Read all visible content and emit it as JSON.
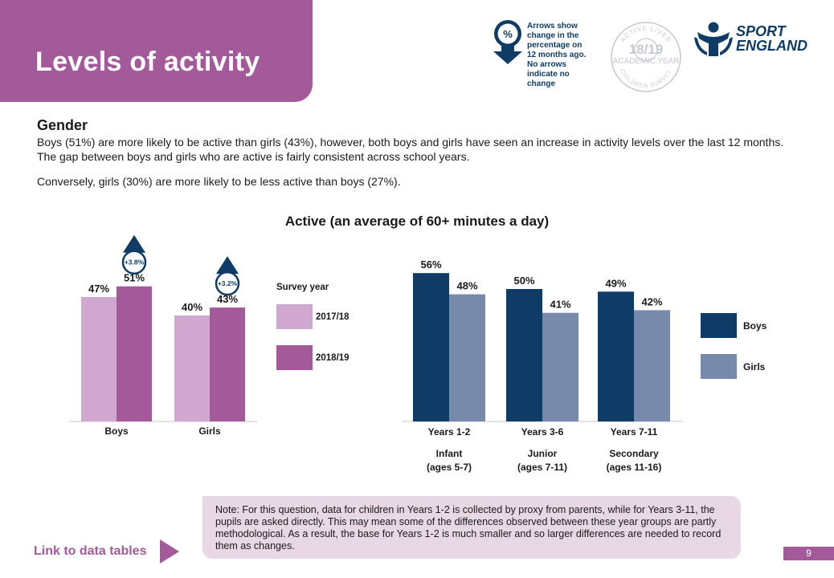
{
  "header": {
    "title": "Levels of activity",
    "arrow_legend_symbol": "%",
    "arrow_legend_lines": [
      "Arrows show",
      "change in the",
      "percentage on",
      "12 months ago.",
      "No arrows",
      "indicate no",
      "change"
    ],
    "badge_top": "ACTIVE LIVES",
    "badge_year": "18/19",
    "badge_mid": "ACADEMIC YEAR",
    "badge_bottom": "CHILDREN SURVEY",
    "logo_line1": "SPORT",
    "logo_line2": "ENGLAND"
  },
  "section": {
    "heading": "Gender",
    "paragraph1": "Boys (51%) are more likely to be active than girls (43%), however, both boys and girls have seen an increase in activity levels over the last 12 months. The gap between boys and girls who are active is fairly consistent across school years.",
    "paragraph2": "Conversely, girls (30%) are more likely to be less active than boys (27%)."
  },
  "chart_title": "Active (an average of 60+ minutes a day)",
  "colors": {
    "purple_light": "#d0a8cf",
    "purple_dark": "#a45a9a",
    "navy": "#0e3c66",
    "steel": "#778aac",
    "arrow": "#0e3c66"
  },
  "chart_data": [
    {
      "type": "bar",
      "categories": [
        "Boys",
        "Girls"
      ],
      "legend_title": "Survey year",
      "series": [
        {
          "name": "2017/18",
          "values": [
            47,
            40
          ],
          "labels": [
            "47%",
            "40%"
          ]
        },
        {
          "name": "2018/19",
          "values": [
            51,
            43
          ],
          "labels": [
            "51%",
            "43%"
          ]
        }
      ],
      "changes": [
        "+3.8%",
        "+3.2%"
      ]
    },
    {
      "type": "bar",
      "categories": [
        "Years 1-2",
        "Years 3-6",
        "Years 7-11"
      ],
      "category_sublabels": [
        [
          "Infant",
          "(ages 5-7)"
        ],
        [
          "Junior",
          "(ages 7-11)"
        ],
        [
          "Secondary",
          "(ages 11-16)"
        ]
      ],
      "series": [
        {
          "name": "Boys",
          "values": [
            56,
            50,
            49
          ],
          "labels": [
            "56%",
            "50%",
            "49%"
          ]
        },
        {
          "name": "Girls",
          "values": [
            48,
            41,
            42
          ],
          "labels": [
            "48%",
            "41%",
            "42%"
          ]
        }
      ]
    }
  ],
  "note": "Note: For this question, data for children in Years 1-2 is collected by proxy from parents, while for Years 3-11, the pupils are asked directly. This may mean some of the differences observed between these year groups are partly methodological. As a result, the base for Years 1-2 is much smaller and so larger differences are needed to record them as changes.",
  "footer": {
    "link_label": "Link to data tables",
    "page_number": "9"
  }
}
